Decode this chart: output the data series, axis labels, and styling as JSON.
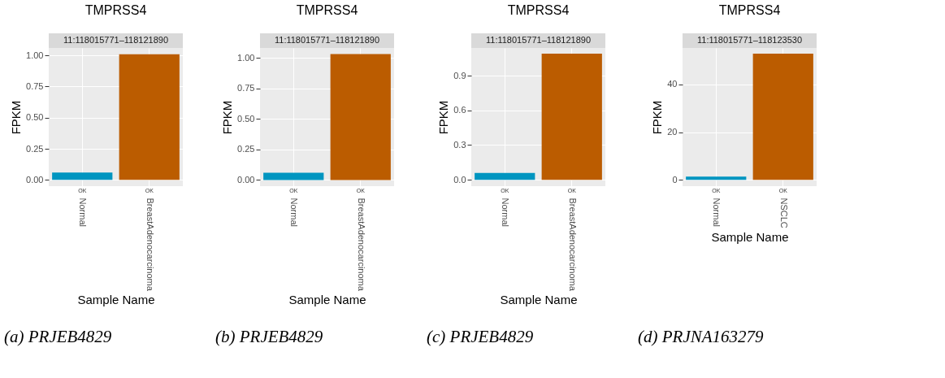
{
  "chart_data": [
    {
      "type": "bar",
      "title": "TMPRSS4",
      "subtitle": "11:118015771–118121890",
      "xlabel": "Sample Name",
      "ylabel": "FPKM",
      "categories": [
        "Normal",
        "BreastAdenocarcinoma"
      ],
      "values": [
        0.06,
        1.01
      ],
      "colors": [
        "#0095c0",
        "#bb5c00"
      ],
      "ylim": [
        -0.05,
        1.06
      ],
      "yticks": [
        {
          "value": 0,
          "label": "0.00"
        },
        0.25,
        {
          "value": 0.5,
          "label": "0.50"
        },
        0.75,
        {
          "value": 1,
          "label": "1.00"
        }
      ],
      "grid": true,
      "annotations": [
        {
          "text": "OK",
          "x": "Normal",
          "y": 0
        },
        {
          "text": "OK",
          "x": "BreastAdenocarcinoma",
          "y": 0
        },
        "(a) PRJEB4829"
      ]
    },
    {
      "type": "bar",
      "title": "TMPRSS4",
      "subtitle": "11:118015771–118121890",
      "xlabel": "Sample Name",
      "ylabel": "FPKM",
      "categories": [
        "Normal",
        "BreastAdenocarcinoma"
      ],
      "values": [
        0.06,
        1.03
      ],
      "colors": [
        "#0095c0",
        "#bb5c00"
      ],
      "ylim": [
        -0.05,
        1.08
      ],
      "yticks": [
        {
          "value": 0,
          "label": "0.00"
        },
        0.25,
        {
          "value": 0.5,
          "label": "0.50"
        },
        0.75,
        {
          "value": 1,
          "label": "1.00"
        }
      ],
      "grid": true,
      "annotations": [
        {
          "text": "OK",
          "x": "Normal",
          "y": 0
        },
        {
          "text": "OK",
          "x": "BreastAdenocarcinoma",
          "y": 0
        },
        "(b) PRJEB4829"
      ]
    },
    {
      "type": "bar",
      "title": "TMPRSS4",
      "subtitle": "11:118015771–118121890",
      "xlabel": "Sample Name",
      "ylabel": "FPKM",
      "categories": [
        "Normal",
        "BreastAdenocarcinoma"
      ],
      "values": [
        0.06,
        1.09
      ],
      "colors": [
        "#0095c0",
        "#bb5c00"
      ],
      "ylim": [
        -0.055,
        1.14
      ],
      "yticks": [
        {
          "value": 0,
          "label": "0.0"
        },
        0.3,
        0.6,
        0.9
      ],
      "grid": true,
      "annotations": [
        {
          "text": "OK",
          "x": "Normal",
          "y": 0
        },
        {
          "text": "OK",
          "x": "BreastAdenocarcinoma",
          "y": 0
        },
        "(c) PRJEB4829"
      ]
    },
    {
      "type": "bar",
      "title": "TMPRSS4",
      "subtitle": "11:118015771–118123530",
      "xlabel": "Sample Name",
      "ylabel": "FPKM",
      "categories": [
        "Normal",
        "NSCLC"
      ],
      "values": [
        1.4,
        52.8
      ],
      "colors": [
        "#0095c0",
        "#bb5c00"
      ],
      "ylim": [
        -2.6,
        55.2
      ],
      "yticks": [
        0,
        20,
        40
      ],
      "grid": true,
      "annotations": [
        {
          "text": "OK",
          "x": "Normal",
          "y": 0
        },
        {
          "text": "OK",
          "x": "NSCLC",
          "y": 0
        },
        "(d) PRJNA163279"
      ]
    }
  ]
}
